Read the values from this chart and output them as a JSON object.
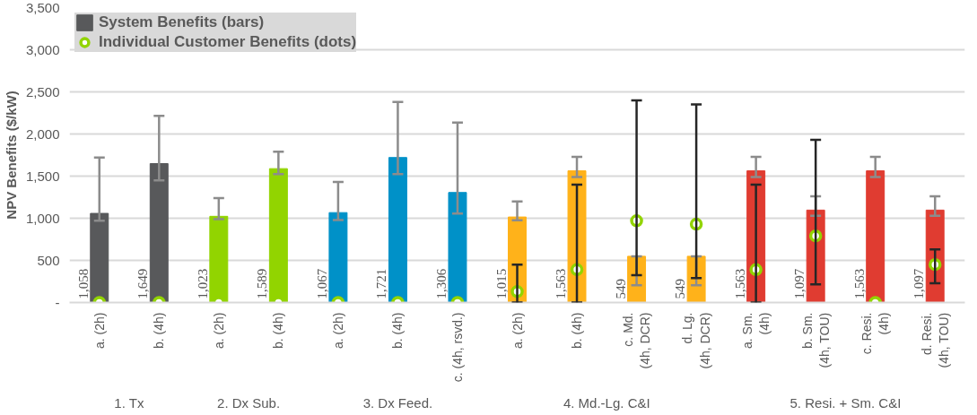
{
  "chart_data": {
    "type": "bar",
    "ylabel": "NPV Benefits ($/kW)",
    "categories": [
      "a. (2h)",
      "b. (4h)",
      "a. (2h)",
      "b. (4h)",
      "a. (2h)",
      "b. (4h)",
      "c. (4h, rsvd.)",
      "a. (2h)",
      "b. (4h)",
      "c. Md.\n(4h, DCR)",
      "d. Lg.\n(4h, DCR)",
      "a. Sm.\n(4h)",
      "b. Sm.\n(4h, TOU)",
      "c. Resi.\n(4h)",
      "d. Resi.\n(4h, TOU)"
    ],
    "annotations": [
      "1. Tx",
      "2. Dx Sub.",
      "3. Dx Feed.",
      "4. Md.-Lg. C&I",
      "5. Resi. + Sm. C&I"
    ],
    "series": [
      {
        "name": "System Benefits (bars)",
        "color": "#58595b",
        "colors": [
          "#58595b",
          "#58595b",
          "#92d400",
          "#92d400",
          "#0091c8",
          "#0091c8",
          "#0091c8",
          "#ffb21a",
          "#ffb21a",
          "#ffb21a",
          "#ffb21a",
          "#e03c31",
          "#e03c31",
          "#e03c31",
          "#e03c31"
        ],
        "values": [
          1058,
          1649,
          1023,
          1589,
          1067,
          1721,
          1306,
          1015,
          1563,
          549,
          549,
          1563,
          1097,
          1563,
          1097
        ],
        "value_labels": [
          "1,058",
          "1,649",
          "1,023",
          "1,589",
          "1,067",
          "1,721",
          "1,306",
          "1,015",
          "1,563",
          "549",
          "549",
          "1,563",
          "1,097",
          "1,563",
          "1,097"
        ],
        "errors": [
          [
            970,
            1720
          ],
          [
            1450,
            2215
          ],
          [
            990,
            1240
          ],
          [
            1525,
            1790
          ],
          [
            980,
            1430
          ],
          [
            1525,
            2380
          ],
          [
            1055,
            2135
          ],
          [
            975,
            1200
          ],
          [
            1490,
            1730
          ],
          [
            205,
            549
          ],
          [
            205,
            549
          ],
          [
            1490,
            1730
          ],
          [
            1030,
            1260
          ],
          [
            1490,
            1730
          ],
          [
            1030,
            1260
          ]
        ]
      },
      {
        "name": "Individual Customer Benefits (dots)",
        "type": "scatter",
        "color": "#92d400",
        "values": [
          0,
          0,
          0,
          0,
          0,
          0,
          0,
          130,
          390,
          970,
          930,
          390,
          790,
          0,
          450
        ],
        "errors": [
          null,
          null,
          null,
          null,
          null,
          null,
          null,
          [
            0,
            450
          ],
          [
            0,
            1400
          ],
          [
            325,
            2400
          ],
          [
            290,
            2350
          ],
          [
            0,
            1400
          ],
          [
            215,
            1930
          ],
          null,
          [
            230,
            630
          ]
        ]
      }
    ],
    "marker": "circle",
    "ylim": [
      0,
      3500
    ],
    "yticks": [
      {
        "value": 0,
        "label": "-"
      },
      {
        "value": 500,
        "label": "500"
      },
      {
        "value": 1000,
        "label": "1,000"
      },
      {
        "value": 1500,
        "label": "1,500"
      },
      {
        "value": 2000,
        "label": "2,000"
      },
      {
        "value": 2500,
        "label": "2,500"
      },
      {
        "value": 3000,
        "label": "3,000"
      },
      {
        "value": 3500,
        "label": "3,500"
      }
    ],
    "grid": "y",
    "legend": "top left"
  }
}
